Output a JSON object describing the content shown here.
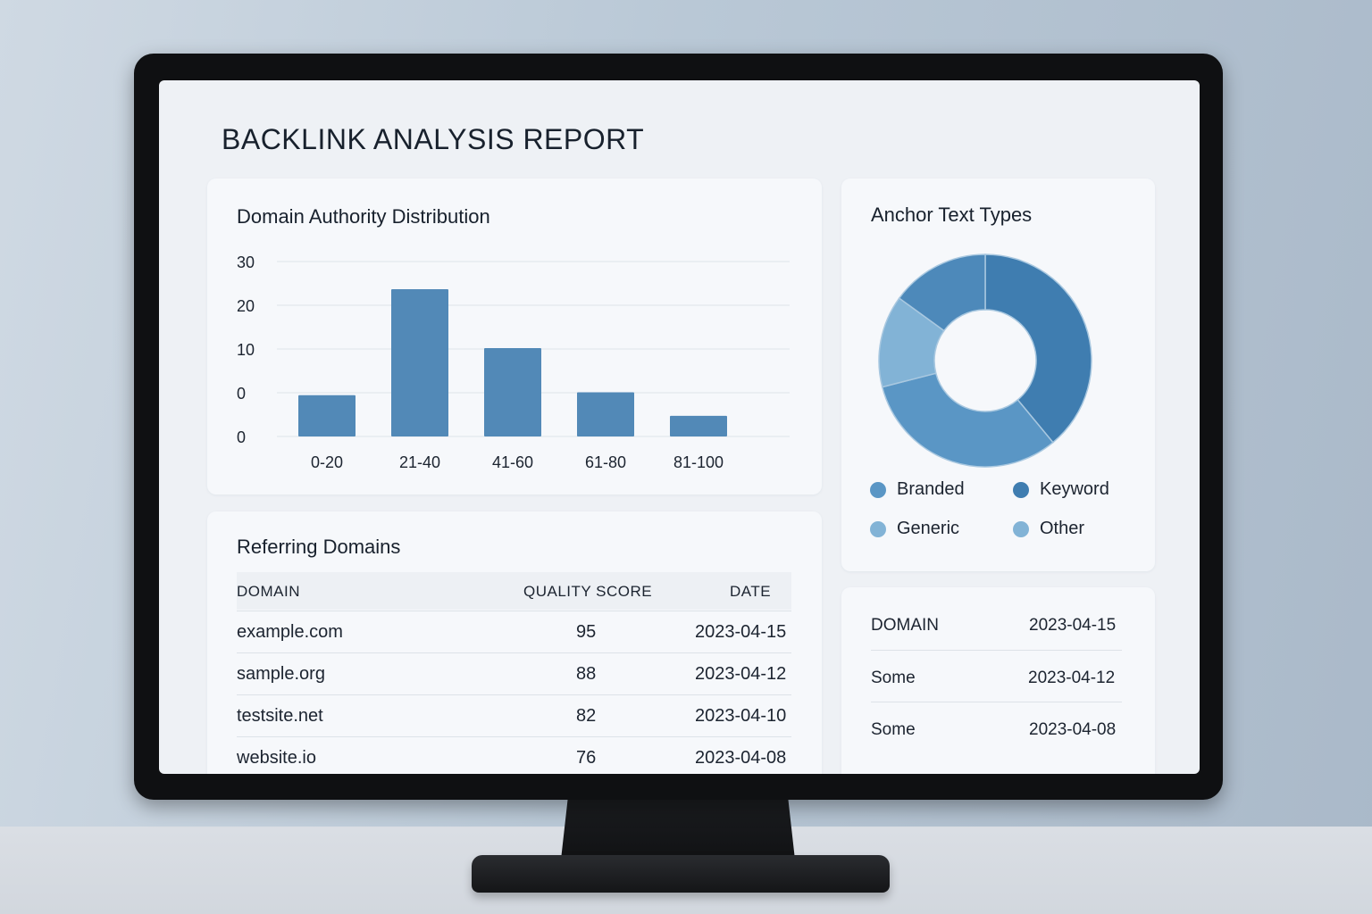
{
  "report": {
    "title": "BACKLINK ANALYSIS REPORT"
  },
  "colors": {
    "bar": "#5289b7",
    "slice_dark": "#3f7db0",
    "slice_mid": "#5a96c5",
    "slice_light": "#82b3d6",
    "slice_medium": "#4d89ba"
  },
  "chart_data": {
    "type": "bar",
    "title": "Domain Authority Distribution",
    "categories": [
      "0-20",
      "21-40",
      "41-60",
      "61-80",
      "81-100"
    ],
    "values": [
      7,
      25,
      15,
      7.5,
      3.5
    ],
    "y_tick_labels": [
      "0",
      "0",
      "10",
      "20",
      "30"
    ],
    "xlabel": "",
    "ylabel": "",
    "grid": true
  },
  "anchor_text": {
    "title": "Anchor Text Types",
    "legend": [
      {
        "label": "Branded",
        "color": "#5a96c5"
      },
      {
        "label": "Keyword",
        "color": "#3f7db0"
      },
      {
        "label": "Generic",
        "color": "#82b3d6"
      },
      {
        "label": "Other",
        "color": "#82b3d6"
      }
    ],
    "slices": [
      {
        "fraction": 0.39,
        "color": "#3f7db0"
      },
      {
        "fraction": 0.32,
        "color": "#5a96c5"
      },
      {
        "fraction": 0.14,
        "color": "#82b3d6"
      },
      {
        "fraction": 0.15,
        "color": "#4d89ba"
      }
    ]
  },
  "referring_domains": {
    "title": "Referring Domains",
    "headers": {
      "domain": "DOMAIN",
      "score": "QUALITY SCORE",
      "date": "DATE"
    },
    "rows": [
      {
        "domain": "example.com",
        "score": "95",
        "date": "2023-04-15"
      },
      {
        "domain": "sample.org",
        "score": "88",
        "date": "2023-04-12"
      },
      {
        "domain": "testsite.net",
        "score": "82",
        "date": "2023-04-10"
      },
      {
        "domain": "website.io",
        "score": "76",
        "date": "2023-04-08"
      }
    ]
  },
  "side_list": {
    "rows": [
      {
        "label": "DOMAIN",
        "date": "2023-04-15"
      },
      {
        "label": "Some",
        "date": "2023-04-12"
      },
      {
        "label": "Some",
        "date": "2023-04-08"
      }
    ]
  }
}
